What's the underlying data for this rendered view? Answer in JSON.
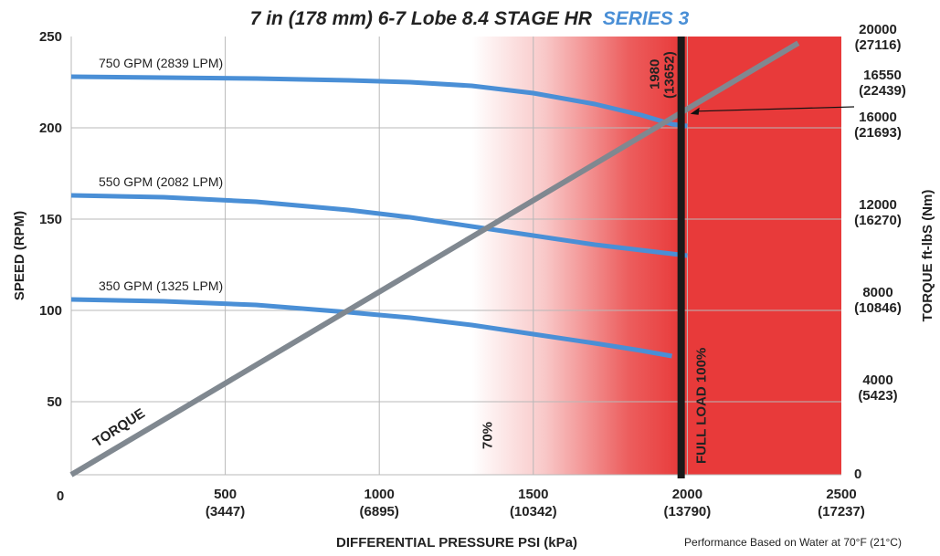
{
  "chart_data": {
    "type": "line",
    "title": "7 in (178 mm) 6-7 Lobe 8.4 STAGE HR",
    "title_accent": "SERIES 3",
    "xlabel": "DIFFERENTIAL PRESSURE  PSI (kPa)",
    "ylabel_left": "SPEED (RPM)",
    "ylabel_right": "TORQUE  ft-lbS (Nm)",
    "note": "Performance Based on Water at 70°F (21°C)",
    "xlim": [
      0,
      2500
    ],
    "ylim_left": [
      10,
      250
    ],
    "ylim_right": [
      0,
      20000
    ],
    "x_ticks": [
      {
        "value": 0,
        "label": "0",
        "sub": ""
      },
      {
        "value": 500,
        "label": "500",
        "sub": "(3447)"
      },
      {
        "value": 1000,
        "label": "1000",
        "sub": "(6895)"
      },
      {
        "value": 1500,
        "label": "1500",
        "sub": "(10342)"
      },
      {
        "value": 2000,
        "label": "2000",
        "sub": "(13790)"
      },
      {
        "value": 2500,
        "label": "2500",
        "sub": "(17237)"
      }
    ],
    "y_left_ticks": [
      {
        "value": 50,
        "label": "50"
      },
      {
        "value": 100,
        "label": "100"
      },
      {
        "value": 150,
        "label": "150"
      },
      {
        "value": 200,
        "label": "200"
      },
      {
        "value": 250,
        "label": "250"
      }
    ],
    "y_right_ticks": [
      {
        "value": 0,
        "label": "0",
        "sub": ""
      },
      {
        "value": 4000,
        "label": "4000",
        "sub": "(5423)"
      },
      {
        "value": 8000,
        "label": "8000",
        "sub": "(10846)"
      },
      {
        "value": 12000,
        "label": "12000",
        "sub": "(16270)"
      },
      {
        "value": 16000,
        "label": "16000",
        "sub": "(21693)"
      },
      {
        "value": 20000,
        "label": "20000",
        "sub": "(27116)"
      }
    ],
    "grid": true,
    "zones": {
      "fade_start_psi": 1300,
      "fade_end_psi": 1980,
      "color": "#e83a3a",
      "label_70": "70%",
      "label_full": "FULL LOAD 100%"
    },
    "full_load": {
      "psi": 1980,
      "label": "1980",
      "label_sub": "(13652)"
    },
    "torque_annotation": {
      "psi": 1980,
      "torque": 16550,
      "label": "16550",
      "label_sub": "(22439)"
    },
    "series": [
      {
        "name": "750 GPM (2839 LPM)",
        "axis": "left",
        "color": "#4a8fd6",
        "x": [
          0,
          300,
          600,
          900,
          1100,
          1300,
          1500,
          1700,
          1850,
          1950,
          2000
        ],
        "y": [
          228,
          227.5,
          227,
          226,
          225,
          223,
          219,
          213,
          207,
          202,
          201
        ]
      },
      {
        "name": "550 GPM (2082 LPM)",
        "axis": "left",
        "color": "#4a8fd6",
        "x": [
          0,
          300,
          600,
          900,
          1100,
          1300,
          1500,
          1700,
          1850,
          2000
        ],
        "y": [
          163,
          162,
          159.5,
          155,
          151,
          146,
          141,
          136,
          133,
          130
        ]
      },
      {
        "name": "350 GPM (1325 LPM)",
        "axis": "left",
        "color": "#4a8fd6",
        "x": [
          0,
          300,
          600,
          900,
          1100,
          1300,
          1500,
          1700,
          1850,
          1950
        ],
        "y": [
          106,
          105,
          103,
          99,
          96,
          92,
          87,
          82,
          78,
          75
        ]
      },
      {
        "name": "TORQUE",
        "axis": "right",
        "color": "#808890",
        "x": [
          0,
          2360
        ],
        "y": [
          0,
          19700
        ]
      }
    ]
  }
}
